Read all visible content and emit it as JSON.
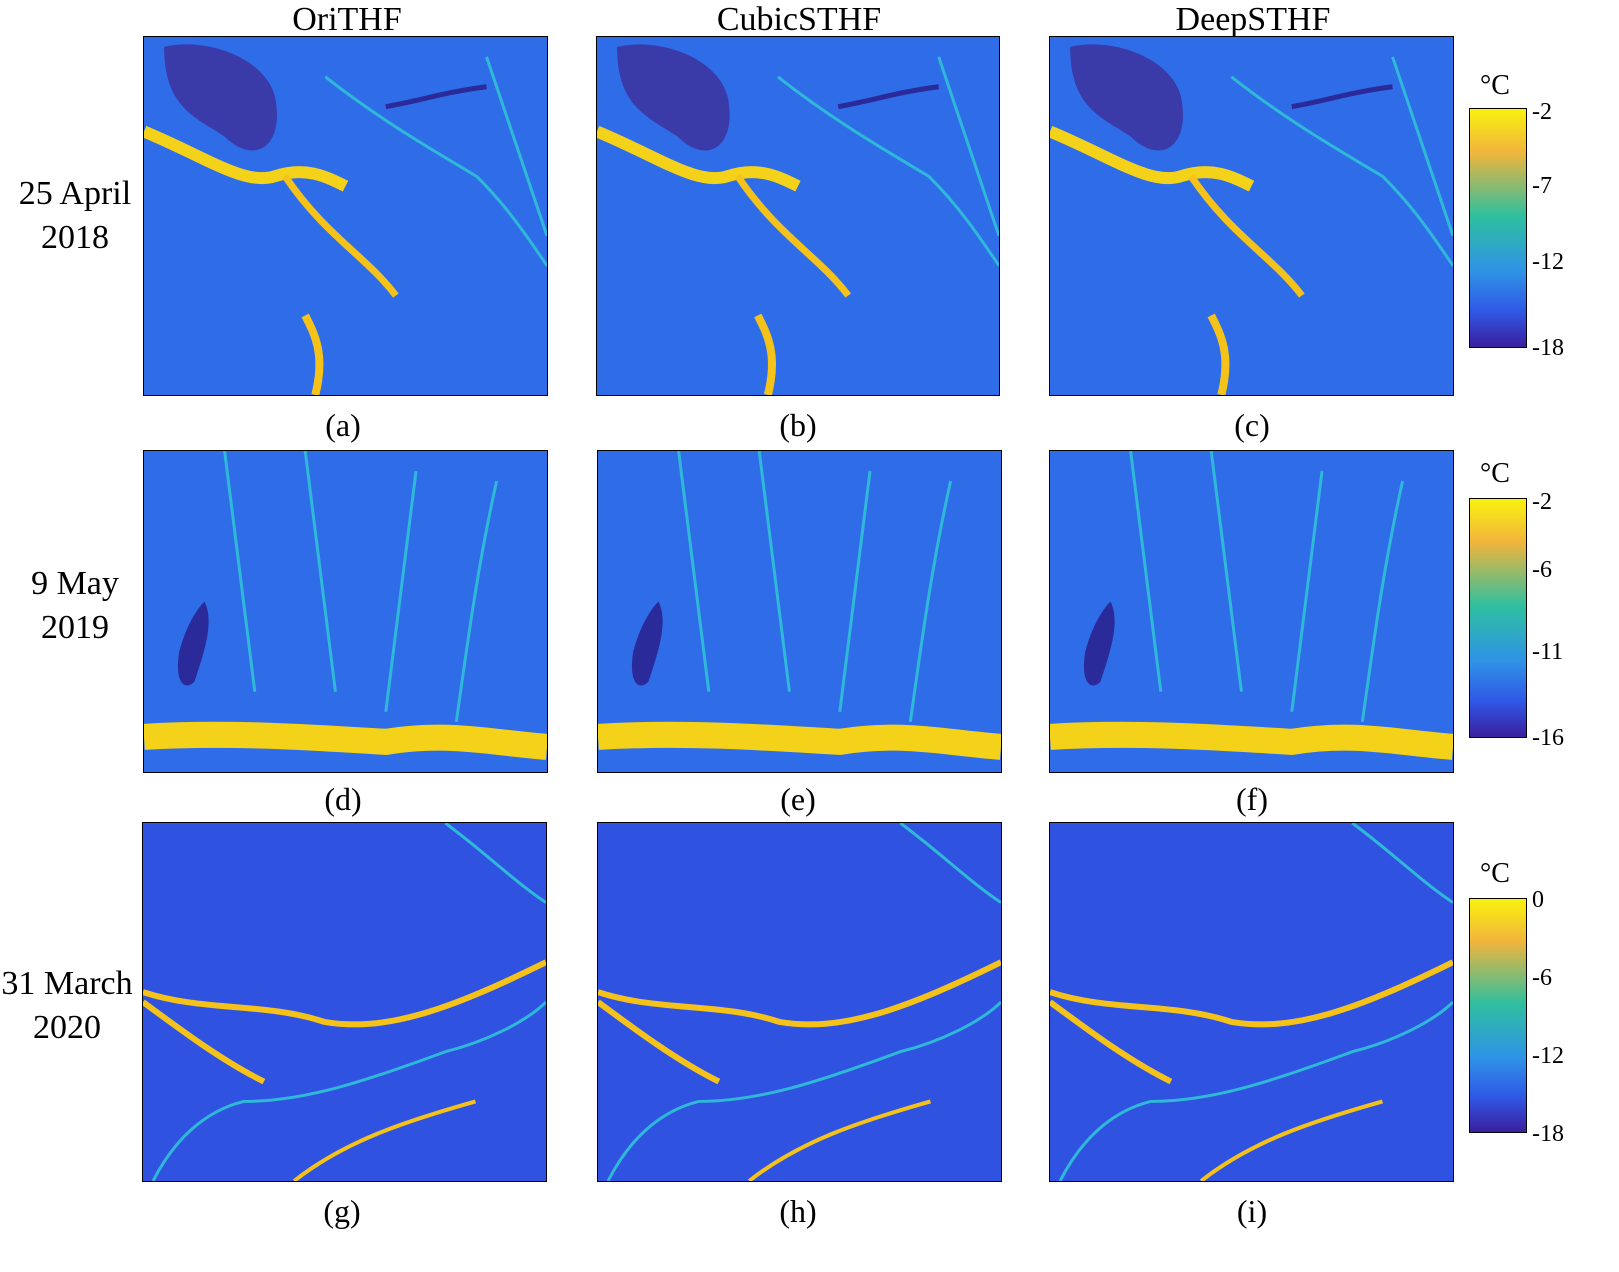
{
  "column_titles": [
    "OriTHF",
    "CubicSTHF",
    "DeepSTHF"
  ],
  "row_labels": [
    {
      "line1": "25 April",
      "line2": "2018"
    },
    {
      "line1": "9 May",
      "line2": "2019"
    },
    {
      "line1": "31 March",
      "line2": "2020"
    }
  ],
  "subfigure_labels": [
    "(a)",
    "(b)",
    "(c)",
    "(d)",
    "(e)",
    "(f)",
    "(g)",
    "(h)",
    "(i)"
  ],
  "colorbars": [
    {
      "unit": "°C",
      "ticks": [
        "-2",
        "-7",
        "-12",
        "-18"
      ]
    },
    {
      "unit": "°C",
      "ticks": [
        "-2",
        "-6",
        "-11",
        "-16"
      ]
    },
    {
      "unit": "°C",
      "ticks": [
        "0",
        "-6",
        "-12",
        "-18"
      ]
    }
  ],
  "colors": {
    "background_field": "#2f6ce8",
    "warm_lead": "#f5d21a",
    "cold_patch": "#2a2a9a",
    "crack": "#2fb8d8"
  }
}
